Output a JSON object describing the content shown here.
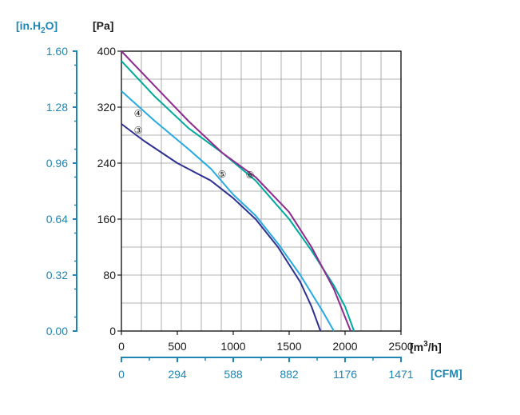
{
  "chart_data": {
    "type": "line",
    "xlabel": "[m³/h]",
    "xlabel_parts": {
      "base": "[m",
      "sup": "3",
      "tail": "/h]"
    },
    "ylabel": "[Pa]",
    "secondary_ylabel": "[in.H₂O]",
    "secondary_ylabel_parts": {
      "base": "[in.H",
      "sub": "2",
      "tail": "O]"
    },
    "secondary_xlabel": "[CFM]",
    "xlim": [
      0,
      2500
    ],
    "ylim": [
      0,
      400
    ],
    "grid": true,
    "x_ticks": [
      "0",
      "500",
      "1000",
      "1500",
      "2000",
      "2500"
    ],
    "x_tick_values": [
      0,
      500,
      1000,
      1500,
      2000,
      2500
    ],
    "y_ticks": [
      "0",
      "80",
      "160",
      "240",
      "320",
      "400"
    ],
    "y_tick_values": [
      0,
      80,
      160,
      240,
      320,
      400
    ],
    "secondary_y_ticks": [
      "0.00",
      "0.32",
      "0.64",
      "0.96",
      "1.28",
      "1.60"
    ],
    "secondary_x_ticks": [
      "0",
      "294",
      "588",
      "882",
      "1176",
      "1471"
    ],
    "series": [
      {
        "marker": "③",
        "color": "#2e3192",
        "x": [
          0,
          200,
          500,
          800,
          1000,
          1200,
          1400,
          1600,
          1700,
          1780
        ],
        "y": [
          296,
          272,
          240,
          215,
          190,
          160,
          120,
          70,
          35,
          0
        ]
      },
      {
        "marker": "④",
        "color": "#27aae1",
        "x": [
          0,
          300,
          600,
          800,
          1000,
          1200,
          1400,
          1600,
          1800,
          1900
        ],
        "y": [
          343,
          300,
          260,
          232,
          195,
          165,
          125,
          80,
          28,
          0
        ]
      },
      {
        "marker": "⑤",
        "color": "#00a99d",
        "x": [
          0,
          300,
          600,
          900,
          1200,
          1500,
          1700,
          1900,
          2000,
          2080
        ],
        "y": [
          386,
          335,
          290,
          255,
          215,
          160,
          115,
          65,
          35,
          0
        ]
      },
      {
        "marker": "⑥",
        "color": "#8e2b8e",
        "x": [
          0,
          300,
          600,
          900,
          1200,
          1500,
          1700,
          1900,
          2050
        ],
        "y": [
          400,
          350,
          300,
          255,
          220,
          170,
          120,
          60,
          0
        ]
      }
    ],
    "marker_labels": [
      {
        "text": "④",
        "x": 150,
        "y": 312
      },
      {
        "text": "③",
        "x": 150,
        "y": 288
      },
      {
        "text": "⑤",
        "x": 900,
        "y": 225
      },
      {
        "text": "⑥",
        "x": 1150,
        "y": 224
      }
    ]
  }
}
